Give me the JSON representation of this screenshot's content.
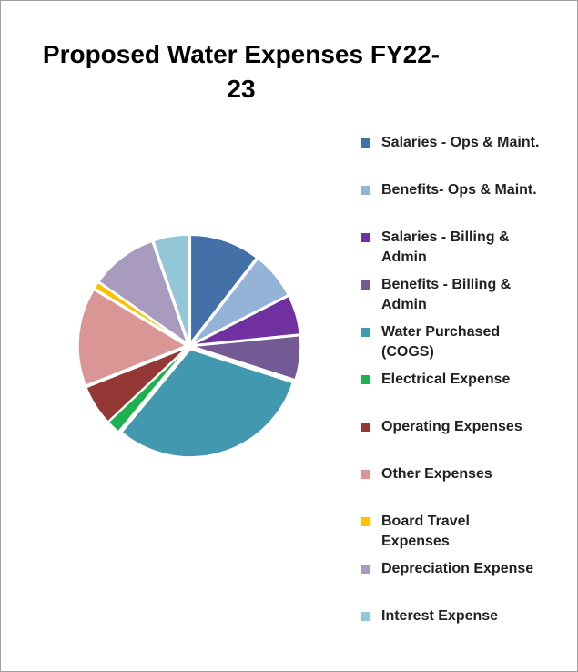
{
  "chart_data": {
    "type": "pie",
    "title": "Proposed Water Expenses FY22-23",
    "categories": [
      "Salaries - Ops & Maint.",
      "Benefits- Ops & Maint.",
      "Salaries - Billing & Admin",
      "Benefits - Billing & Admin",
      "Water Purchased (COGS)",
      "Electrical Expense",
      "Operating Expenses",
      "Other Expenses",
      "Board Travel Expenses",
      "Depreciation Expense",
      "Interest Expense"
    ],
    "values": [
      10.5,
      7,
      5.9,
      6.6,
      31,
      2,
      6,
      14.7,
      1,
      10,
      5.3
    ],
    "colors": [
      "#4470a8",
      "#95b3d7",
      "#7030a0",
      "#735a94",
      "#4198af",
      "#1fb050",
      "#953735",
      "#d99694",
      "#ffc000",
      "#a99bbd",
      "#93c6d6"
    ],
    "legend": "right"
  }
}
